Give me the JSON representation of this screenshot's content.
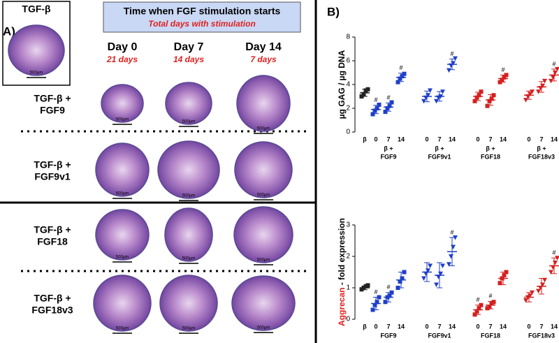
{
  "panel_a": {
    "label": "A)",
    "control_title": "TGF-β",
    "header": {
      "title": "Time when FGF stimulation starts",
      "subtitle": "Total days with stimulation"
    },
    "columns": [
      {
        "day": "Day 0",
        "total": "21 days"
      },
      {
        "day": "Day 7",
        "total": "14 days"
      },
      {
        "day": "Day 14",
        "total": "7 days"
      }
    ],
    "rows": [
      [
        "TGF-β +",
        "FGF9"
      ],
      [
        "TGF-β +",
        "FGF9v1"
      ],
      [
        "TGF-β +",
        "FGF18"
      ],
      [
        "TGF-β +",
        "FGF18v3"
      ]
    ],
    "scale_bar": "500µm"
  },
  "panel_b": {
    "label": "B)"
  },
  "chart_data": [
    {
      "type": "dotplot",
      "ylabel": [
        {
          "text": "µg GAG / µg DNA",
          "color": "#000000"
        }
      ],
      "ylim": [
        0,
        8
      ],
      "yticks": [
        0,
        2,
        4,
        6,
        8
      ],
      "control": {
        "category": "β",
        "points": [
          3.0,
          3.2,
          3.5,
          3.6
        ],
        "mean": 3.3,
        "error": 0.3,
        "color": "#222222",
        "marker": "square",
        "annotation": null
      },
      "groups": [
        {
          "label": [
            "β +",
            "FGF9"
          ],
          "color": "#1f3fc8",
          "marker": "square",
          "categories": [
            "0",
            "7",
            "14"
          ],
          "points": [
            [
              1.5,
              1.8,
              2.0,
              2.3
            ],
            [
              1.7,
              2.0,
              2.2,
              2.5
            ],
            [
              4.2,
              4.5,
              4.7,
              4.9
            ]
          ],
          "means": [
            1.9,
            2.1,
            4.6
          ],
          "errors": [
            0.35,
            0.35,
            0.35
          ],
          "annotations": [
            "#",
            "#",
            "#"
          ]
        },
        {
          "label": [
            "β +",
            "FGF9v1"
          ],
          "color": "#1f3fc8",
          "marker": "triangle",
          "categories": [
            "0",
            "7",
            "14"
          ],
          "points": [
            [
              2.6,
              2.9,
              3.1,
              3.5
            ],
            [
              2.6,
              2.9,
              3.0,
              3.4
            ],
            [
              5.2,
              5.6,
              5.8,
              6.2
            ]
          ],
          "means": [
            3.0,
            3.0,
            5.7
          ],
          "errors": [
            0.45,
            0.4,
            0.45
          ],
          "annotations": [
            null,
            null,
            "#"
          ]
        },
        {
          "label": [
            "β +",
            "FGF18"
          ],
          "color": "#d42020",
          "marker": "square",
          "categories": [
            "0",
            "7",
            "14"
          ],
          "points": [
            [
              2.6,
              2.9,
              3.1,
              3.4
            ],
            [
              2.2,
              2.6,
              2.8,
              3.1
            ],
            [
              4.2,
              4.4,
              4.6,
              4.8
            ]
          ],
          "means": [
            3.0,
            2.7,
            4.5
          ],
          "errors": [
            0.35,
            0.45,
            0.3
          ],
          "annotations": [
            null,
            null,
            "#"
          ]
        },
        {
          "label": [
            "β +",
            "FGF18v3"
          ],
          "color": "#d42020",
          "marker": "triangle",
          "categories": [
            "0",
            "7",
            "14"
          ],
          "points": [
            [
              2.7,
              3.0,
              3.2,
              3.4
            ],
            [
              3.4,
              3.7,
              3.9,
              4.3
            ],
            [
              4.3,
              4.6,
              5.0,
              5.3
            ]
          ],
          "means": [
            3.1,
            3.8,
            4.8
          ],
          "errors": [
            0.35,
            0.45,
            0.5
          ],
          "annotations": [
            null,
            null,
            "#"
          ]
        }
      ]
    },
    {
      "type": "dotplot",
      "ylabel": [
        {
          "text": "Aggrecan",
          "color": "#e02020"
        },
        {
          "text": " - fold expression",
          "color": "#000000"
        }
      ],
      "ylim": [
        0,
        3
      ],
      "yticks": [
        0,
        1,
        2,
        3
      ],
      "control": {
        "category": "β",
        "points": [
          0.95,
          1.0,
          1.05,
          1.08
        ],
        "mean": 1.0,
        "error": 0.06,
        "color": "#222222",
        "marker": "square",
        "annotation": null
      },
      "groups": [
        {
          "label": [
            "FGF9"
          ],
          "color": "#1f3fc8",
          "marker": "square",
          "categories": [
            "0",
            "7",
            "14"
          ],
          "points": [
            [
              0.3,
              0.45,
              0.55,
              0.7
            ],
            [
              0.55,
              0.7,
              0.75,
              0.85
            ],
            [
              1.0,
              1.2,
              1.3,
              1.5
            ]
          ],
          "means": [
            0.5,
            0.7,
            1.25
          ],
          "errors": [
            0.2,
            0.15,
            0.25
          ],
          "annotations": [
            "#",
            "#",
            null
          ]
        },
        {
          "label": [
            "FGF9v1"
          ],
          "color": "#1f3fc8",
          "marker": "triangle",
          "categories": [
            "0",
            "7",
            "14"
          ],
          "points": [
            [
              1.3,
              1.45,
              1.55,
              1.7
            ],
            [
              1.1,
              1.35,
              1.45,
              1.7
            ],
            [
              1.75,
              2.0,
              2.3,
              2.6
            ]
          ],
          "means": [
            1.5,
            1.4,
            2.15
          ],
          "errors": [
            0.3,
            0.4,
            0.45
          ],
          "annotations": [
            null,
            null,
            "#"
          ]
        },
        {
          "label": [
            "FGF18"
          ],
          "color": "#d42020",
          "marker": "square",
          "categories": [
            "0",
            "7",
            "14"
          ],
          "points": [
            [
              0.15,
              0.25,
              0.35,
              0.45
            ],
            [
              0.35,
              0.4,
              0.5,
              0.55
            ],
            [
              1.15,
              1.3,
              1.4,
              1.5
            ]
          ],
          "means": [
            0.3,
            0.45,
            1.3
          ],
          "errors": [
            0.15,
            0.12,
            0.2
          ],
          "annotations": [
            "#",
            "#",
            null
          ]
        },
        {
          "label": [
            "FGF18v3"
          ],
          "color": "#d42020",
          "marker": "triangle",
          "categories": [
            "0",
            "7",
            "14"
          ],
          "points": [
            [
              0.6,
              0.7,
              0.75,
              0.85
            ],
            [
              0.9,
              1.0,
              1.1,
              1.25
            ],
            [
              1.5,
              1.65,
              1.8,
              1.95
            ]
          ],
          "means": [
            0.7,
            1.05,
            1.7
          ],
          "errors": [
            0.15,
            0.25,
            0.25
          ],
          "annotations": [
            null,
            null,
            "#"
          ]
        }
      ]
    }
  ]
}
